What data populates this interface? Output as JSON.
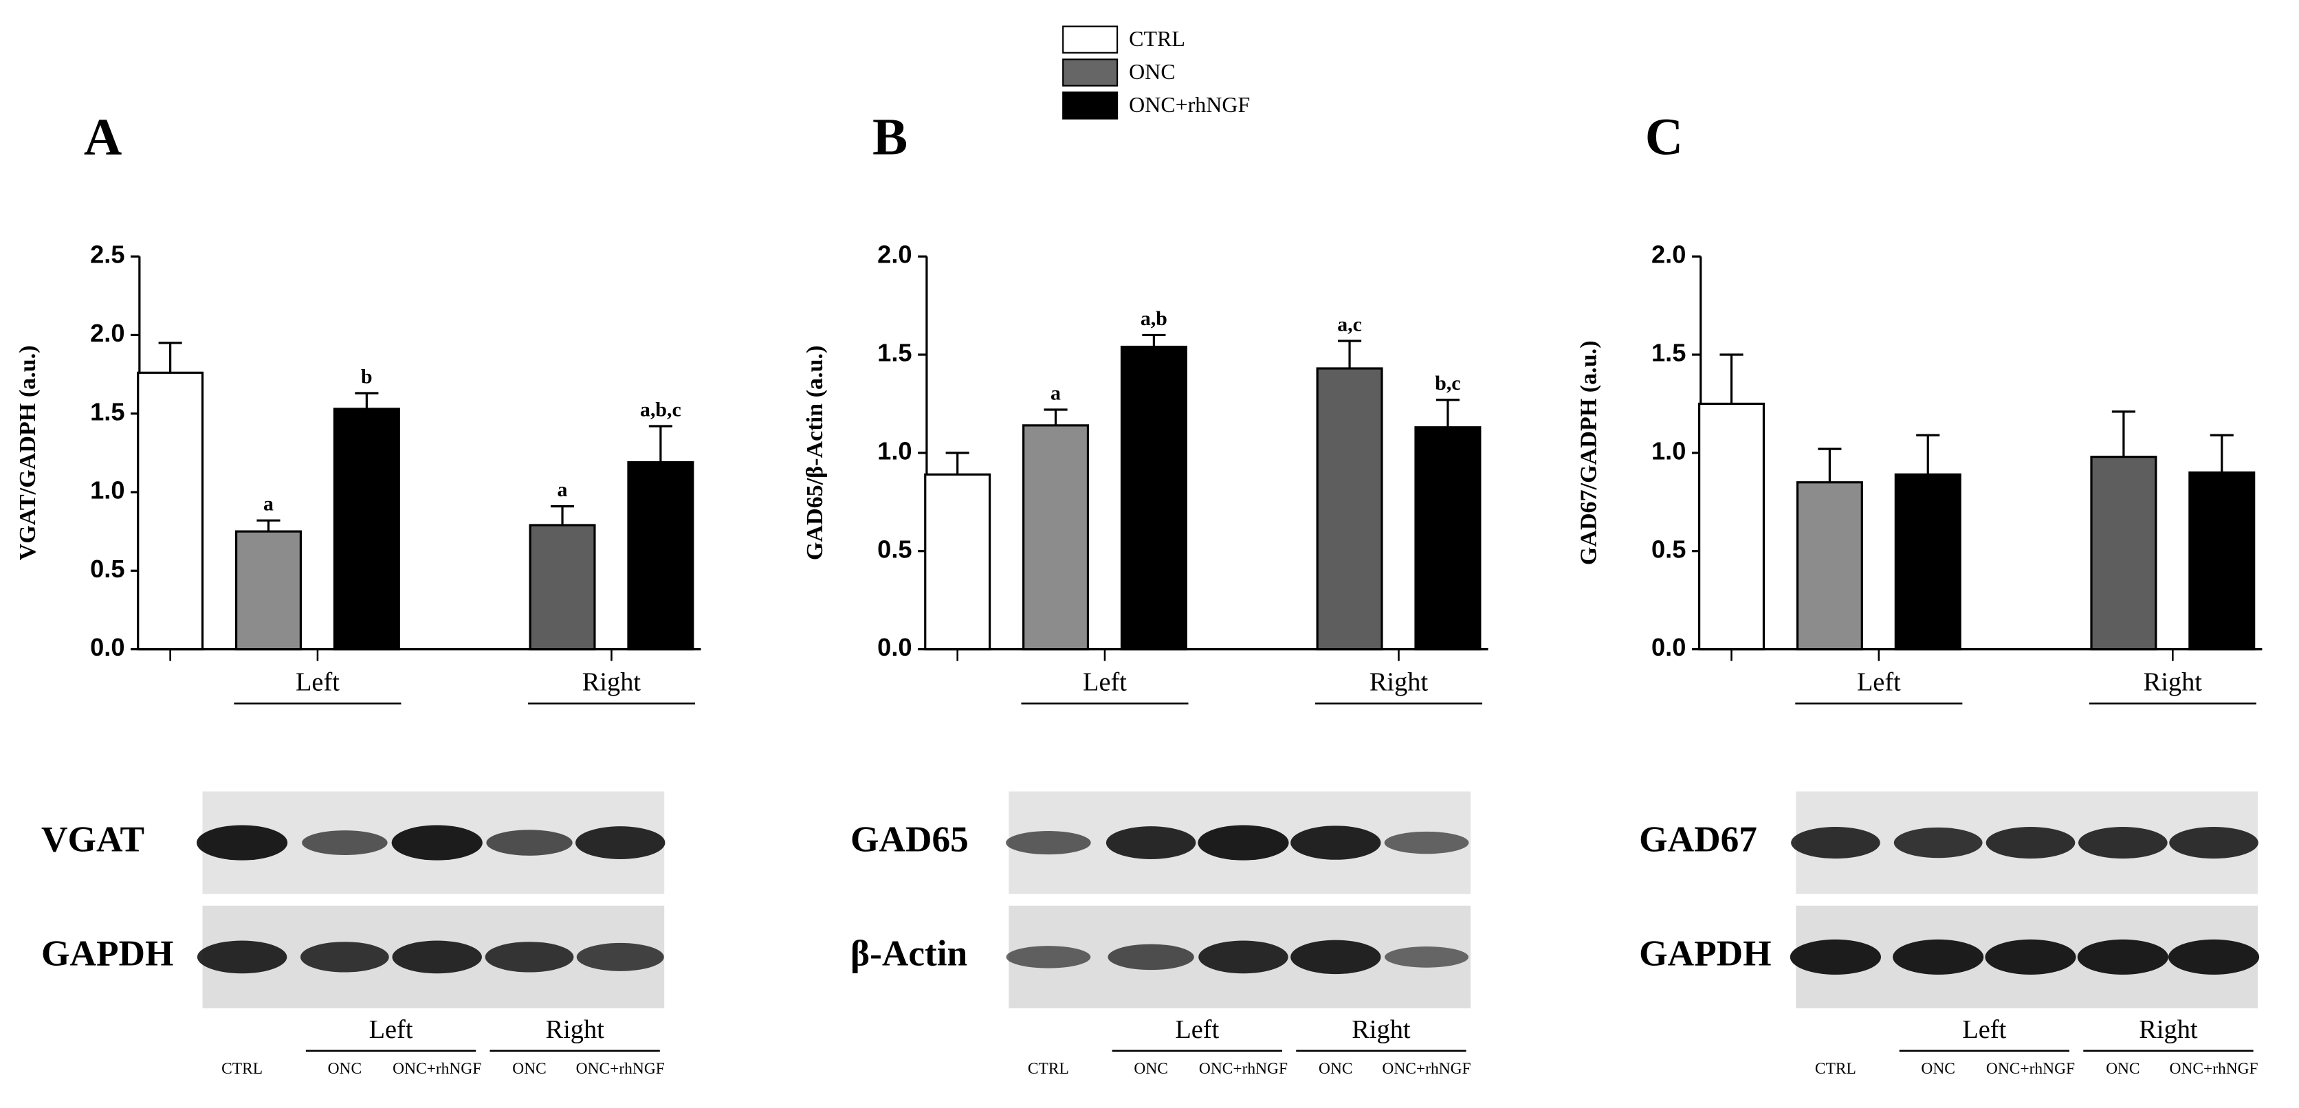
{
  "chart_data": [
    {
      "type": "bar",
      "panel": "A",
      "ylabel": "VGAT/GADPH (a.u.)",
      "categories": [
        null,
        "Left",
        "Right"
      ],
      "series": [
        {
          "name": "CTRL",
          "color": "#ffffff",
          "values": [
            1.76,
            null,
            null
          ],
          "errors": [
            0.19,
            null,
            null
          ],
          "annotations": [
            null,
            null,
            null
          ]
        },
        {
          "name": "ONC",
          "color": "#666666",
          "colors": [
            null,
            "#8c8c8c",
            "#5e5e5e"
          ],
          "values": [
            null,
            0.75,
            0.79
          ],
          "errors": [
            null,
            0.07,
            0.12
          ],
          "annotations": [
            null,
            "a",
            "a"
          ]
        },
        {
          "name": "ONC+rhNGF",
          "color": "#000000",
          "values": [
            null,
            1.53,
            1.19
          ],
          "errors": [
            null,
            0.1,
            0.23
          ],
          "annotations": [
            null,
            "b",
            "a,b,c"
          ]
        }
      ],
      "ylim": [
        0,
        2.5
      ],
      "yticks": [
        {
          "value": 0,
          "label": "0.0"
        },
        0.5,
        {
          "value": 1,
          "label": "1.0"
        },
        1.5,
        {
          "value": 2,
          "label": "2.0"
        },
        2.5
      ],
      "blot": {
        "rows": [
          "VGAT",
          "GAPDH"
        ]
      }
    },
    {
      "type": "bar",
      "panel": "B",
      "ylabel": "GAD65/β-Actin (a.u.)",
      "categories": [
        null,
        "Left",
        "Right"
      ],
      "series": [
        {
          "name": "CTRL",
          "color": "#ffffff",
          "values": [
            0.89,
            null,
            null
          ],
          "errors": [
            0.11,
            null,
            null
          ],
          "annotations": [
            null,
            null,
            null
          ]
        },
        {
          "name": "ONC",
          "color": "#666666",
          "colors": [
            null,
            "#8c8c8c",
            "#5e5e5e"
          ],
          "values": [
            null,
            1.14,
            1.43
          ],
          "errors": [
            null,
            0.08,
            0.14
          ],
          "annotations": [
            null,
            "a",
            "a,c"
          ]
        },
        {
          "name": "ONC+rhNGF",
          "color": "#000000",
          "values": [
            null,
            1.54,
            1.13
          ],
          "errors": [
            null,
            0.06,
            0.14
          ],
          "annotations": [
            null,
            "a,b",
            "b,c"
          ]
        }
      ],
      "ylim": [
        0,
        2
      ],
      "yticks": [
        {
          "value": 0,
          "label": "0.0"
        },
        0.5,
        {
          "value": 1,
          "label": "1.0"
        },
        1.5,
        {
          "value": 2,
          "label": "2.0"
        }
      ],
      "blot": {
        "rows": [
          "GAD65",
          "β-Actin"
        ]
      }
    },
    {
      "type": "bar",
      "panel": "C",
      "ylabel": "GAD67/GADPH (a.u.)",
      "categories": [
        null,
        "Left",
        "Right"
      ],
      "series": [
        {
          "name": "CTRL",
          "color": "#ffffff",
          "values": [
            1.25,
            null,
            null
          ],
          "errors": [
            0.25,
            null,
            null
          ],
          "annotations": [
            null,
            null,
            null
          ]
        },
        {
          "name": "ONC",
          "color": "#666666",
          "colors": [
            null,
            "#8c8c8c",
            "#5e5e5e"
          ],
          "values": [
            null,
            0.85,
            0.98
          ],
          "errors": [
            null,
            0.17,
            0.23
          ],
          "annotations": [
            null,
            null,
            null
          ]
        },
        {
          "name": "ONC+rhNGF",
          "color": "#000000",
          "values": [
            null,
            0.89,
            0.9
          ],
          "errors": [
            null,
            0.2,
            0.19
          ],
          "annotations": [
            null,
            null,
            null
          ]
        }
      ],
      "ylim": [
        0,
        2
      ],
      "yticks": [
        {
          "value": 0,
          "label": "0.0"
        },
        0.5,
        {
          "value": 1,
          "label": "1.0"
        },
        1.5,
        {
          "value": 2,
          "label": "2.0"
        }
      ],
      "blot": {
        "rows": [
          "GAD67",
          "GAPDH"
        ]
      }
    }
  ],
  "blot_lanes": {
    "labels": [
      "CTRL",
      "ONC",
      "ONC+rhNGF",
      "ONC",
      "ONC+rhNGF"
    ],
    "groups": [
      "Left",
      "Right"
    ]
  }
}
